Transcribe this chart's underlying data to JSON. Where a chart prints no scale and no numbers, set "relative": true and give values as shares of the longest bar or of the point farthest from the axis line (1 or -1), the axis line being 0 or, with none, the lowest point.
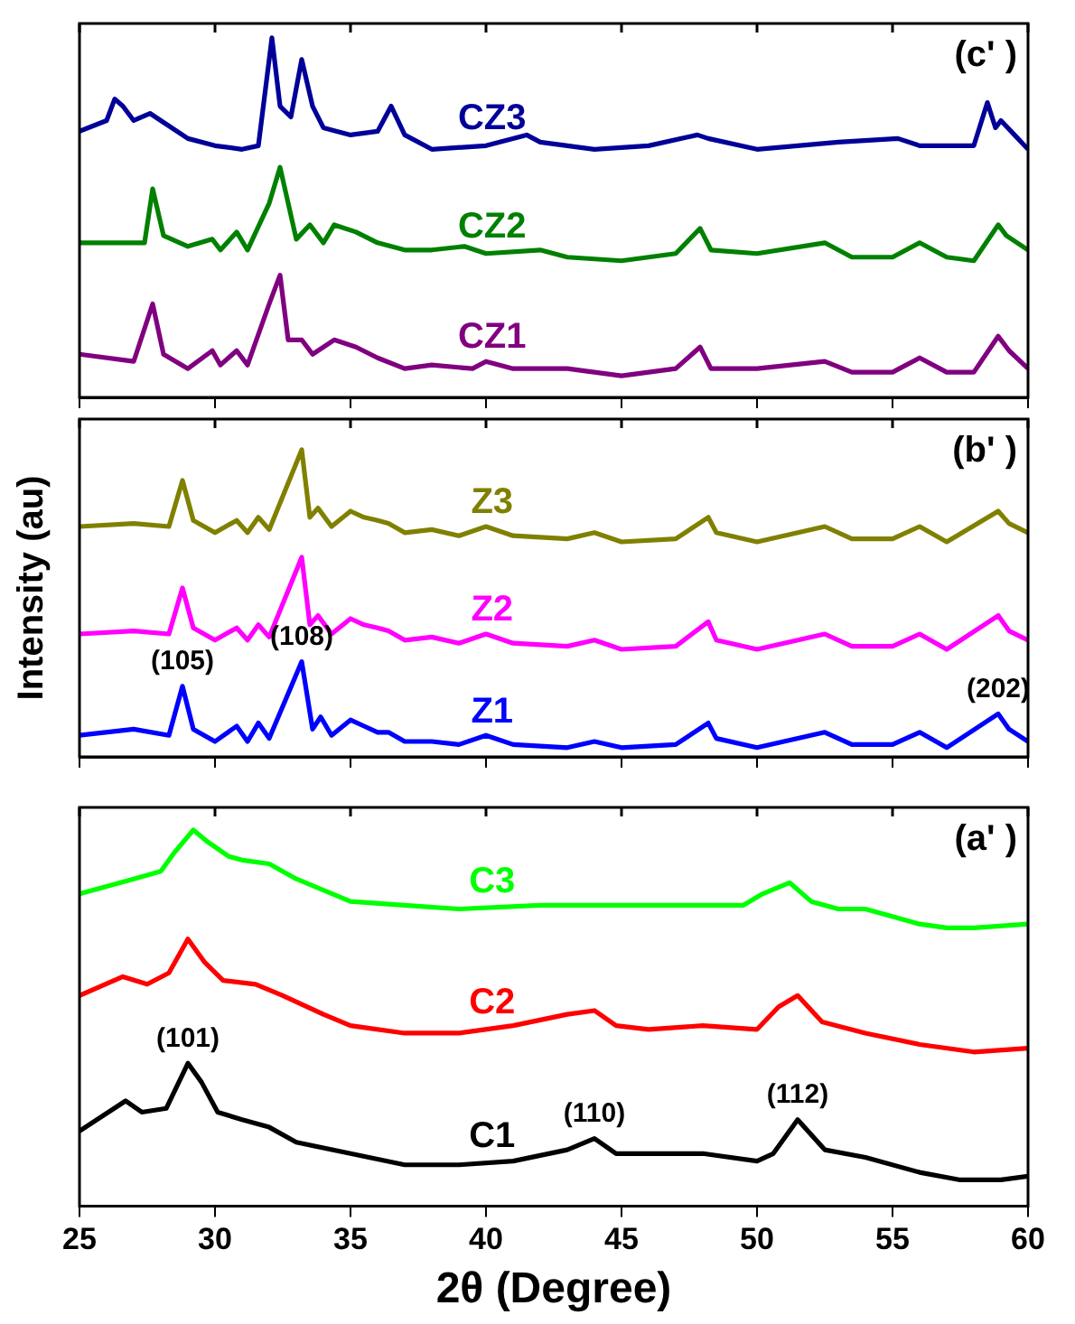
{
  "chart_data": [
    {
      "type": "line",
      "relative": true,
      "xlim": [
        25,
        60
      ],
      "xticks": [
        25,
        30,
        35,
        40,
        45,
        50,
        55,
        60
      ],
      "tick_labels": false,
      "legend": false,
      "grid": false,
      "marker": "none",
      "annotations": [
        "(c' )"
      ],
      "series": [
        {
          "name": "CZ3",
          "color": "#000099",
          "x": [
            25,
            26,
            26.3,
            26.6,
            27,
            27.6,
            28,
            29,
            30,
            31,
            31.6,
            32.1,
            32.4,
            32.8,
            33.2,
            33.6,
            34,
            35,
            36,
            36.5,
            37,
            38,
            40,
            41.5,
            42,
            44,
            46,
            47.8,
            48.2,
            50,
            53,
            55.2,
            56,
            58,
            58.5,
            58.8,
            59,
            59.5,
            60
          ],
          "values": [
            0.74,
            0.77,
            0.83,
            0.81,
            0.77,
            0.79,
            0.77,
            0.72,
            0.7,
            0.69,
            0.7,
            1.0,
            0.81,
            0.78,
            0.94,
            0.81,
            0.75,
            0.73,
            0.74,
            0.81,
            0.73,
            0.69,
            0.7,
            0.73,
            0.71,
            0.69,
            0.7,
            0.73,
            0.72,
            0.69,
            0.71,
            0.72,
            0.7,
            0.7,
            0.82,
            0.75,
            0.77,
            0.73,
            0.69
          ]
        },
        {
          "name": "CZ2",
          "color": "#008000",
          "x": [
            25,
            27,
            27.4,
            27.7,
            28.1,
            29,
            29.9,
            30.2,
            30.8,
            31.2,
            32.0,
            32.4,
            32.7,
            33,
            33.5,
            34,
            34.4,
            35.2,
            36,
            37,
            38,
            39.2,
            40,
            42,
            43,
            45,
            47,
            47.9,
            48.3,
            50,
            52.5,
            53.5,
            55,
            56,
            57,
            58,
            58.9,
            59.2,
            60
          ],
          "values": [
            0.43,
            0.43,
            0.43,
            0.58,
            0.45,
            0.42,
            0.44,
            0.41,
            0.46,
            0.41,
            0.54,
            0.64,
            0.54,
            0.44,
            0.48,
            0.43,
            0.48,
            0.46,
            0.43,
            0.41,
            0.41,
            0.42,
            0.4,
            0.41,
            0.39,
            0.38,
            0.4,
            0.47,
            0.41,
            0.4,
            0.43,
            0.39,
            0.39,
            0.43,
            0.39,
            0.38,
            0.48,
            0.45,
            0.41
          ]
        },
        {
          "name": "CZ1",
          "color": "#800080",
          "x": [
            25,
            27,
            27.7,
            28.1,
            29,
            29.9,
            30.2,
            30.8,
            31.2,
            32.0,
            32.4,
            32.7,
            33.2,
            33.6,
            34.4,
            35.2,
            36,
            37,
            38,
            39.5,
            40,
            41,
            42.5,
            43,
            45,
            47,
            47.9,
            48.3,
            50,
            52.5,
            53.5,
            55,
            56,
            57,
            58,
            58.9,
            59.3,
            60
          ],
          "values": [
            0.12,
            0.1,
            0.26,
            0.12,
            0.08,
            0.13,
            0.09,
            0.13,
            0.09,
            0.26,
            0.34,
            0.16,
            0.16,
            0.12,
            0.16,
            0.14,
            0.11,
            0.08,
            0.09,
            0.08,
            0.1,
            0.08,
            0.08,
            0.08,
            0.06,
            0.08,
            0.14,
            0.08,
            0.08,
            0.1,
            0.07,
            0.07,
            0.11,
            0.07,
            0.07,
            0.17,
            0.13,
            0.08
          ]
        }
      ]
    },
    {
      "type": "line",
      "relative": true,
      "xlim": [
        25,
        60
      ],
      "xticks": [
        25,
        30,
        35,
        40,
        45,
        50,
        55,
        60
      ],
      "tick_labels": false,
      "legend": false,
      "grid": false,
      "marker": "none",
      "ylabel": "Intensity (au)",
      "annotations": [
        "(b' )",
        {
          "text": "(105)",
          "x": 28.8,
          "y": 0.23
        },
        {
          "text": "(108)",
          "x": 33.2,
          "y": 0.31
        },
        {
          "text": "(202)",
          "x": 58.9,
          "y": 0.14
        }
      ],
      "series": [
        {
          "name": "Z3",
          "color": "#808000",
          "x": [
            25,
            27,
            28.3,
            28.8,
            29.2,
            30,
            30.8,
            31.2,
            31.6,
            32,
            33.2,
            33.5,
            33.8,
            34.3,
            35,
            35.5,
            36,
            36.4,
            37,
            38,
            39,
            40,
            41,
            43,
            44,
            45,
            47,
            48.2,
            48.5,
            50,
            52.5,
            53.5,
            55,
            56,
            57,
            58.9,
            59.3,
            60
          ],
          "values": [
            0.75,
            0.76,
            0.75,
            0.9,
            0.77,
            0.73,
            0.77,
            0.73,
            0.78,
            0.74,
            1.0,
            0.78,
            0.81,
            0.75,
            0.8,
            0.78,
            0.77,
            0.76,
            0.73,
            0.74,
            0.72,
            0.75,
            0.72,
            0.71,
            0.73,
            0.7,
            0.71,
            0.78,
            0.73,
            0.7,
            0.75,
            0.71,
            0.71,
            0.75,
            0.7,
            0.8,
            0.76,
            0.73
          ]
        },
        {
          "name": "Z2",
          "color": "#ff00ff",
          "x": [
            25,
            27,
            28.3,
            28.8,
            29.2,
            30,
            30.8,
            31.2,
            31.6,
            32,
            33.2,
            33.5,
            33.8,
            34.3,
            35,
            35.5,
            36,
            36.4,
            37,
            38,
            39,
            40,
            41,
            43,
            44,
            45,
            47,
            48.2,
            48.5,
            50,
            52.5,
            53.5,
            55,
            56,
            57,
            58.9,
            59.3,
            60
          ],
          "values": [
            0.4,
            0.41,
            0.4,
            0.55,
            0.42,
            0.38,
            0.42,
            0.38,
            0.43,
            0.39,
            0.65,
            0.43,
            0.46,
            0.4,
            0.45,
            0.43,
            0.42,
            0.41,
            0.38,
            0.39,
            0.37,
            0.4,
            0.37,
            0.36,
            0.38,
            0.35,
            0.36,
            0.44,
            0.38,
            0.35,
            0.4,
            0.36,
            0.36,
            0.4,
            0.35,
            0.46,
            0.41,
            0.38
          ]
        },
        {
          "name": "Z1",
          "color": "#0000ff",
          "x": [
            25,
            27,
            28.3,
            28.8,
            29.2,
            30,
            30.8,
            31.2,
            31.6,
            32,
            33.2,
            33.6,
            33.9,
            34.3,
            35,
            35.5,
            36,
            36.4,
            37,
            38,
            39,
            40,
            41,
            43,
            44,
            45,
            47,
            48.2,
            48.5,
            50,
            52.5,
            53.5,
            55,
            56,
            57,
            58.9,
            59.3,
            60
          ],
          "values": [
            0.07,
            0.09,
            0.07,
            0.23,
            0.09,
            0.05,
            0.1,
            0.05,
            0.11,
            0.06,
            0.31,
            0.09,
            0.13,
            0.07,
            0.12,
            0.1,
            0.08,
            0.08,
            0.05,
            0.05,
            0.04,
            0.07,
            0.04,
            0.03,
            0.05,
            0.03,
            0.04,
            0.11,
            0.06,
            0.03,
            0.08,
            0.04,
            0.04,
            0.08,
            0.03,
            0.14,
            0.09,
            0.05
          ]
        }
      ]
    },
    {
      "type": "line",
      "relative": true,
      "xlim": [
        25,
        60
      ],
      "xticks": [
        25,
        30,
        35,
        40,
        45,
        50,
        55,
        60
      ],
      "tick_labels": "x",
      "legend": false,
      "grid": false,
      "marker": "none",
      "xlabel": "2θ (Degree)",
      "annotations": [
        "(a' )",
        {
          "text": "(101)",
          "x": 29.0,
          "y": 0.38
        },
        {
          "text": "(110)",
          "x": 44.0,
          "y": 0.18
        },
        {
          "text": "(112)",
          "x": 51.5,
          "y": 0.23
        }
      ],
      "series": [
        {
          "name": "C3",
          "color": "#00ff00",
          "x": [
            25,
            26,
            27,
            28,
            28.5,
            29.2,
            29.7,
            30.5,
            31,
            32,
            33,
            34,
            35,
            37,
            39,
            42,
            44,
            46,
            48,
            49.5,
            50.2,
            51.2,
            52,
            53,
            54,
            56,
            57,
            58,
            60
          ],
          "values": [
            0.83,
            0.85,
            0.87,
            0.89,
            0.94,
            1.0,
            0.97,
            0.93,
            0.92,
            0.91,
            0.87,
            0.84,
            0.81,
            0.8,
            0.79,
            0.8,
            0.8,
            0.8,
            0.8,
            0.8,
            0.83,
            0.86,
            0.81,
            0.79,
            0.79,
            0.75,
            0.74,
            0.74,
            0.75
          ]
        },
        {
          "name": "C2",
          "color": "#ff0000",
          "x": [
            25,
            26.6,
            27.5,
            28.3,
            29.0,
            29.6,
            30.3,
            31.5,
            32.5,
            34,
            35,
            37,
            39,
            41,
            43,
            44.0,
            44.8,
            46,
            48,
            50,
            50.8,
            51.5,
            52.4,
            54,
            56,
            58,
            60
          ],
          "values": [
            0.56,
            0.61,
            0.59,
            0.62,
            0.71,
            0.65,
            0.6,
            0.59,
            0.56,
            0.51,
            0.48,
            0.46,
            0.46,
            0.48,
            0.51,
            0.52,
            0.48,
            0.47,
            0.48,
            0.47,
            0.53,
            0.56,
            0.49,
            0.46,
            0.43,
            0.41,
            0.42
          ]
        },
        {
          "name": "C1",
          "color": "#000000",
          "x": [
            25,
            26.7,
            27.3,
            28.2,
            29.0,
            29.5,
            30.1,
            31,
            32,
            33,
            35,
            37,
            39,
            41,
            43,
            44.0,
            44.8,
            46,
            48,
            50,
            50.6,
            51.5,
            52.5,
            54,
            56,
            57.5,
            59,
            60
          ],
          "values": [
            0.2,
            0.28,
            0.25,
            0.26,
            0.38,
            0.33,
            0.25,
            0.23,
            0.21,
            0.17,
            0.14,
            0.11,
            0.11,
            0.12,
            0.15,
            0.18,
            0.14,
            0.14,
            0.14,
            0.12,
            0.14,
            0.23,
            0.15,
            0.13,
            0.09,
            0.07,
            0.07,
            0.08
          ]
        }
      ]
    }
  ]
}
